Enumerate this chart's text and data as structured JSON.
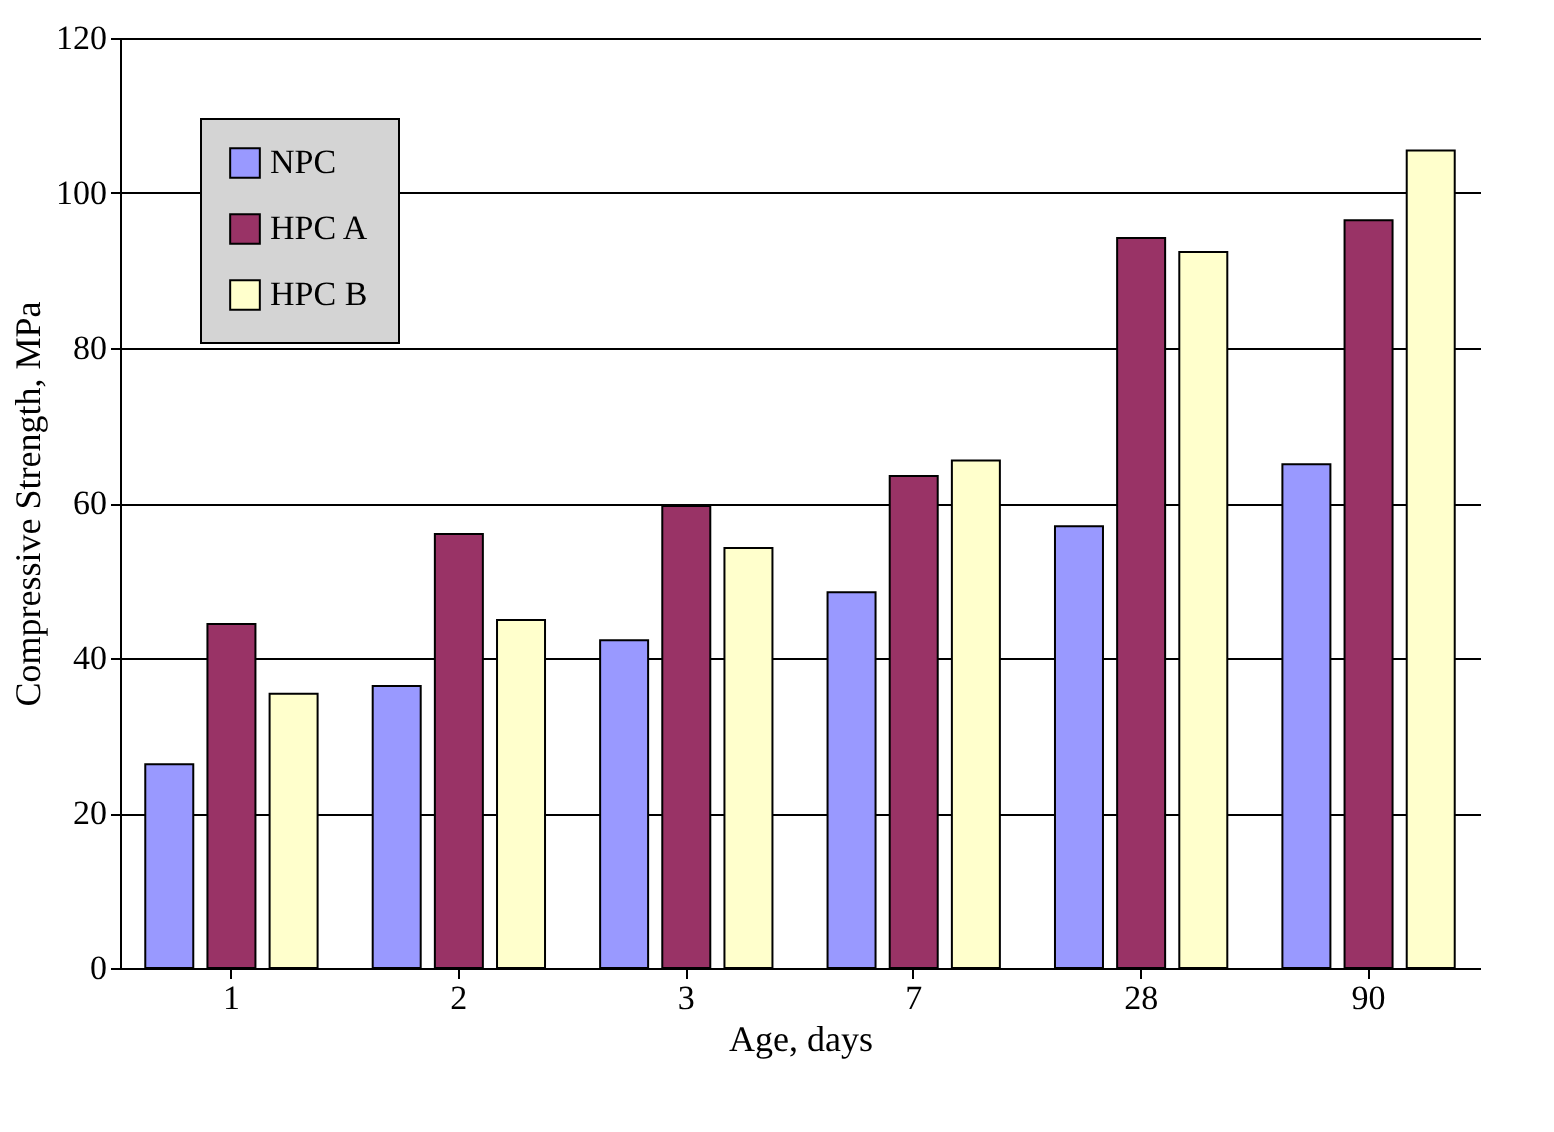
{
  "chart_data": {
    "type": "bar",
    "xlabel": "Age, days",
    "ylabel": "Compressive Strength, MPa",
    "categories": [
      "1",
      "2",
      "3",
      "7",
      "28",
      "90"
    ],
    "series": [
      {
        "name": "NPC",
        "color": "#9999ff",
        "values": [
          26.3,
          36.4,
          42.3,
          48.5,
          57,
          65
        ]
      },
      {
        "name": "HPC A",
        "color": "#993366",
        "values": [
          44.4,
          56,
          59.6,
          63.5,
          94.2,
          96.5
        ]
      },
      {
        "name": "HPC B",
        "color": "#ffffcc",
        "values": [
          35.4,
          44.9,
          54.2,
          65.5,
          92.4,
          105.5
        ]
      }
    ],
    "ylim": [
      0,
      120
    ],
    "yticks": [
      0,
      20,
      40,
      60,
      80,
      100,
      120
    ],
    "grid": "y",
    "legend": "top left"
  }
}
